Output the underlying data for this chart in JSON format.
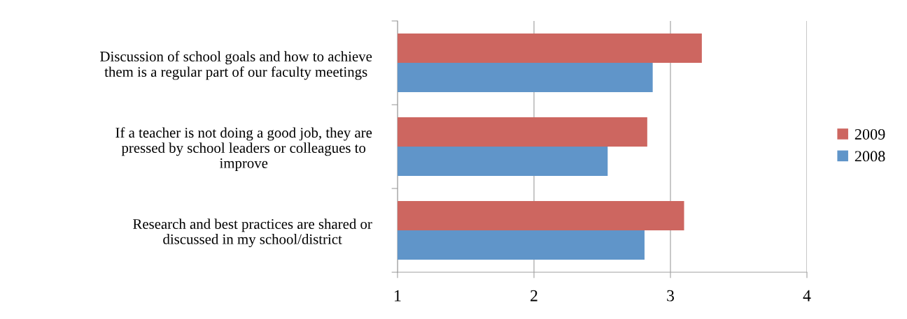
{
  "chart_data": {
    "type": "bar",
    "orientation": "horizontal",
    "categories": [
      "Discussion of school goals and how to achieve\nthem is a regular part of our faculty meetings",
      "If a teacher is not doing a good job, they are\npressed by school leaders or colleagues to\nimprove",
      "Research and best practices are shared or\ndiscussed in my school/district"
    ],
    "series": [
      {
        "name": "2009",
        "color": "#cd6660",
        "values": [
          3.23,
          2.83,
          3.1
        ]
      },
      {
        "name": "2008",
        "color": "#6095c9",
        "values": [
          2.87,
          2.54,
          2.81
        ]
      }
    ],
    "xlim": [
      1,
      4
    ],
    "xticks": [
      1,
      2,
      3,
      4
    ],
    "grid": "x",
    "legend": "right"
  }
}
